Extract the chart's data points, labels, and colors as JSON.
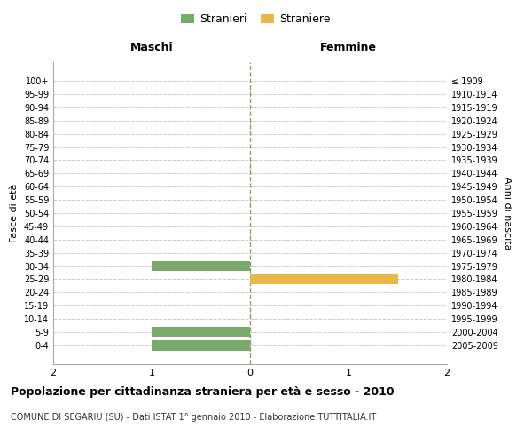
{
  "age_groups": [
    "100+",
    "95-99",
    "90-94",
    "85-89",
    "80-84",
    "75-79",
    "70-74",
    "65-69",
    "60-64",
    "55-59",
    "50-54",
    "45-49",
    "40-44",
    "35-39",
    "30-34",
    "25-29",
    "20-24",
    "15-19",
    "10-14",
    "5-9",
    "0-4"
  ],
  "birth_years": [
    "≤ 1909",
    "1910-1914",
    "1915-1919",
    "1920-1924",
    "1925-1929",
    "1930-1934",
    "1935-1939",
    "1940-1944",
    "1945-1949",
    "1950-1954",
    "1955-1959",
    "1960-1964",
    "1965-1969",
    "1970-1974",
    "1975-1979",
    "1980-1984",
    "1985-1989",
    "1990-1994",
    "1995-1999",
    "2000-2004",
    "2005-2009"
  ],
  "males": [
    0,
    0,
    0,
    0,
    0,
    0,
    0,
    0,
    0,
    0,
    0,
    0,
    0,
    0,
    1,
    0,
    0,
    0,
    0,
    1,
    1
  ],
  "females": [
    0,
    0,
    0,
    0,
    0,
    0,
    0,
    0,
    0,
    0,
    0,
    0,
    0,
    0,
    0,
    1.5,
    0,
    0,
    0,
    0,
    0
  ],
  "male_color": "#7AAA6A",
  "female_color": "#E8B84B",
  "xlim": [
    -2,
    2
  ],
  "xticks": [
    -2,
    -1,
    0,
    1,
    2
  ],
  "xticklabels": [
    "2",
    "1",
    "0",
    "1",
    "2"
  ],
  "title": "Popolazione per cittadinanza straniera per età e sesso - 2010",
  "subtitle": "COMUNE DI SEGARIU (SU) - Dati ISTAT 1° gennaio 2010 - Elaborazione TUTTITALIA.IT",
  "ylabel_left": "Fasce di età",
  "ylabel_right": "Anni di nascita",
  "header_left": "Maschi",
  "header_right": "Femmine",
  "legend_male": "Stranieri",
  "legend_female": "Straniere",
  "background_color": "#ffffff",
  "grid_color": "#cccccc",
  "bar_height": 0.75
}
